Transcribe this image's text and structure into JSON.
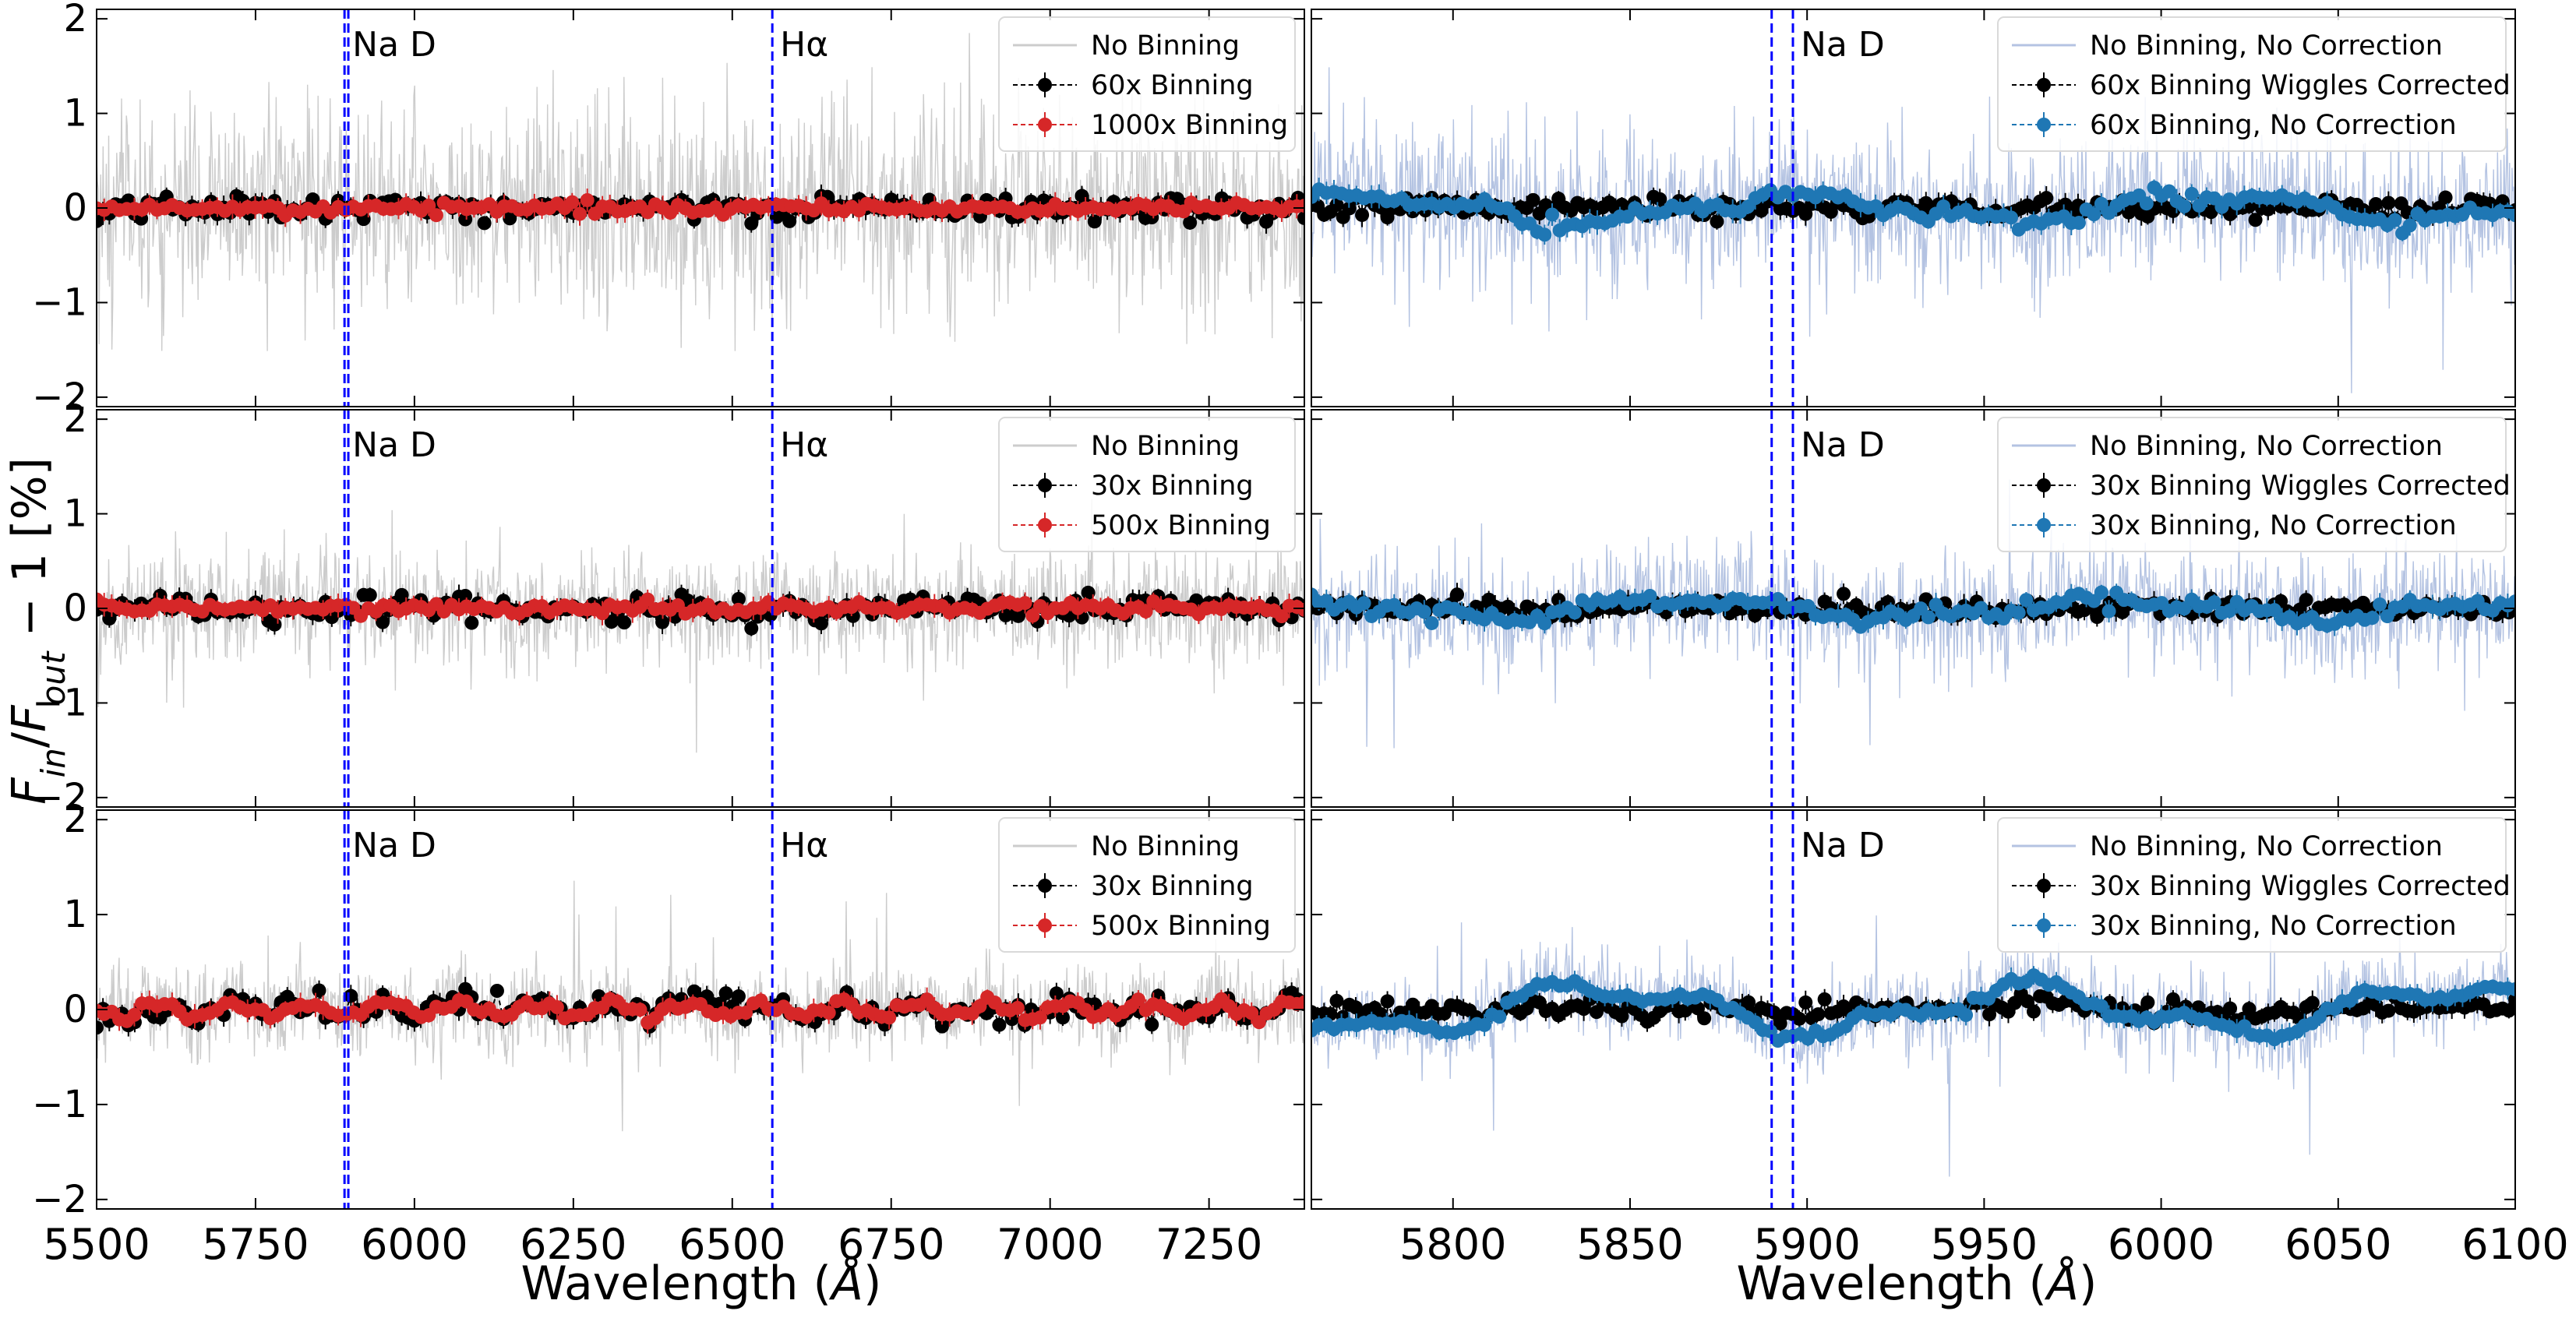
{
  "figure": {
    "ylabel": "F_in/F_out − 1 [%]",
    "ylabel_parts": {
      "f": "F",
      "sub_in": "in",
      "slash": "/",
      "f2": "F",
      "sub_out": "out",
      "rest": " − 1 [%]"
    },
    "xlabel": "Wavelength (Å)",
    "xlabel_parts": {
      "main": "Wavelength (",
      "unit": "Å",
      "close": ")"
    }
  },
  "colors": {
    "raw_grey": "#cccccc",
    "raw_blue": "#b4c3e2",
    "black_series": "#000000",
    "red_series": "#d62728",
    "blue_series": "#1f77b4",
    "reference_line": "#0000ff"
  },
  "chart_data": [
    {
      "type": "line",
      "panel": "top-left",
      "xlim": [
        5500,
        7400
      ],
      "ylim": [
        -2.1,
        2.1
      ],
      "yticks": [
        -2,
        -1,
        0,
        1,
        2
      ],
      "yticklabels": [
        "−2",
        "−1",
        "0",
        "1",
        "2"
      ],
      "xticks": [
        5500,
        5750,
        6000,
        6250,
        6500,
        6750,
        7000,
        7250
      ],
      "xticklabels": [],
      "reference_lines": [
        {
          "x": 5890,
          "label": "Na D"
        },
        {
          "x": 5896,
          "label": ""
        },
        {
          "x": 6563,
          "label": "Hα"
        }
      ],
      "legend_position": "top-right",
      "series": [
        {
          "name": "No Binning",
          "style": "raw",
          "color": "#cccccc",
          "noise_sigma": 0.55,
          "wiggle_amplitude": 0
        },
        {
          "name": "60x Binning",
          "style": "binned",
          "color": "#000000",
          "noise_sigma": 0.07,
          "wiggle_amplitude": 0
        },
        {
          "name": "1000x Binning",
          "style": "binned",
          "color": "#d62728",
          "noise_sigma": 0.03,
          "wiggle_amplitude": 0
        }
      ]
    },
    {
      "type": "line",
      "panel": "top-right",
      "xlim": [
        5760,
        6100
      ],
      "ylim": [
        -2.1,
        2.1
      ],
      "yticks": [
        -2,
        -1,
        0,
        1,
        2
      ],
      "yticklabels": [],
      "xticks": [
        5800,
        5850,
        5900,
        5950,
        6000,
        6050,
        6100
      ],
      "xticklabels": [],
      "reference_lines": [
        {
          "x": 5890,
          "label": ""
        },
        {
          "x": 5896,
          "label": "Na D"
        }
      ],
      "legend_position": "top-right",
      "series": [
        {
          "name": "No Binning, No Correction",
          "style": "raw",
          "color": "#b4c3e2",
          "noise_sigma": 0.4,
          "wiggle_amplitude": 0.12
        },
        {
          "name": "60x Binning Wiggles Corrected",
          "style": "binned",
          "color": "#000000",
          "noise_sigma": 0.05,
          "wiggle_amplitude": 0
        },
        {
          "name": "60x Binning, No Correction",
          "style": "binned",
          "color": "#1f77b4",
          "noise_sigma": 0.04,
          "wiggle_amplitude": 0.12
        }
      ]
    },
    {
      "type": "line",
      "panel": "middle-left",
      "xlim": [
        5500,
        7400
      ],
      "ylim": [
        -2.1,
        2.1
      ],
      "yticks": [
        -2,
        -1,
        0,
        1,
        2
      ],
      "yticklabels": [
        "−2",
        "−1",
        "0",
        "1",
        "2"
      ],
      "xticks": [
        5500,
        5750,
        6000,
        6250,
        6500,
        6750,
        7000,
        7250
      ],
      "xticklabels": [],
      "reference_lines": [
        {
          "x": 5890,
          "label": "Na D"
        },
        {
          "x": 5896,
          "label": ""
        },
        {
          "x": 6563,
          "label": "Hα"
        }
      ],
      "legend_position": "top-right",
      "series": [
        {
          "name": "No Binning",
          "style": "raw",
          "color": "#cccccc",
          "noise_sigma": 0.3,
          "wiggle_amplitude": 0
        },
        {
          "name": "30x Binning",
          "style": "binned",
          "color": "#000000",
          "noise_sigma": 0.07,
          "wiggle_amplitude": 0
        },
        {
          "name": "500x Binning",
          "style": "binned",
          "color": "#d62728",
          "noise_sigma": 0.03,
          "wiggle_amplitude": 0.02
        }
      ]
    },
    {
      "type": "line",
      "panel": "middle-right",
      "xlim": [
        5760,
        6100
      ],
      "ylim": [
        -2.1,
        2.1
      ],
      "yticks": [
        -2,
        -1,
        0,
        1,
        2
      ],
      "yticklabels": [],
      "xticks": [
        5800,
        5850,
        5900,
        5950,
        6000,
        6050,
        6100
      ],
      "xticklabels": [],
      "reference_lines": [
        {
          "x": 5890,
          "label": ""
        },
        {
          "x": 5896,
          "label": "Na D"
        }
      ],
      "legend_position": "top-right",
      "series": [
        {
          "name": "No Binning, No Correction",
          "style": "raw",
          "color": "#b4c3e2",
          "noise_sigma": 0.3,
          "wiggle_amplitude": 0.1
        },
        {
          "name": "30x Binning Wiggles Corrected",
          "style": "binned",
          "color": "#000000",
          "noise_sigma": 0.05,
          "wiggle_amplitude": 0
        },
        {
          "name": "30x Binning, No Correction",
          "style": "binned",
          "color": "#1f77b4",
          "noise_sigma": 0.04,
          "wiggle_amplitude": 0.1
        }
      ]
    },
    {
      "type": "line",
      "panel": "bottom-left",
      "xlim": [
        5500,
        7400
      ],
      "ylim": [
        -2.1,
        2.1
      ],
      "yticks": [
        -2,
        -1,
        0,
        1,
        2
      ],
      "yticklabels": [
        "−2",
        "−1",
        "0",
        "1",
        "2"
      ],
      "xticks": [
        5500,
        5750,
        6000,
        6250,
        6500,
        6750,
        7000,
        7250
      ],
      "xticklabels": [
        "5500",
        "5750",
        "6000",
        "6250",
        "6500",
        "6750",
        "7000",
        "7250"
      ],
      "reference_lines": [
        {
          "x": 5890,
          "label": "Na D"
        },
        {
          "x": 5896,
          "label": ""
        },
        {
          "x": 6563,
          "label": "Hα"
        }
      ],
      "legend_position": "top-right",
      "series": [
        {
          "name": "No Binning",
          "style": "raw",
          "color": "#cccccc",
          "noise_sigma": 0.22,
          "wiggle_amplitude": 0.08
        },
        {
          "name": "30x Binning",
          "style": "binned",
          "color": "#000000",
          "noise_sigma": 0.07,
          "wiggle_amplitude": 0.05
        },
        {
          "name": "500x Binning",
          "style": "binned",
          "color": "#d62728",
          "noise_sigma": 0.02,
          "wiggle_amplitude": 0.07
        }
      ]
    },
    {
      "type": "line",
      "panel": "bottom-right",
      "xlim": [
        5760,
        6100
      ],
      "ylim": [
        -2.1,
        2.1
      ],
      "yticks": [
        -2,
        -1,
        0,
        1,
        2
      ],
      "yticklabels": [],
      "xticks": [
        5800,
        5850,
        5900,
        5950,
        6000,
        6050,
        6100
      ],
      "xticklabels": [
        "5800",
        "5850",
        "5900",
        "5950",
        "6000",
        "6050",
        "6100"
      ],
      "reference_lines": [
        {
          "x": 5890,
          "label": ""
        },
        {
          "x": 5896,
          "label": "Na D"
        }
      ],
      "legend_position": "top-right",
      "series": [
        {
          "name": "No Binning, No Correction",
          "style": "raw",
          "color": "#b4c3e2",
          "noise_sigma": 0.22,
          "wiggle_amplitude": 0.22
        },
        {
          "name": "30x Binning Wiggles Corrected",
          "style": "binned",
          "color": "#000000",
          "noise_sigma": 0.05,
          "wiggle_amplitude": 0.03
        },
        {
          "name": "30x Binning, No Correction",
          "style": "binned",
          "color": "#1f77b4",
          "noise_sigma": 0.03,
          "wiggle_amplitude": 0.22
        }
      ]
    }
  ]
}
